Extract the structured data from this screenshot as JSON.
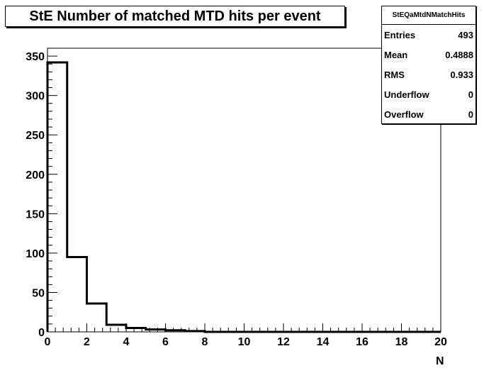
{
  "chart_data": {
    "type": "histogram",
    "title": "StE Number of matched MTD hits per event",
    "xlabel": "N",
    "ylabel": "",
    "xlim": [
      0,
      20
    ],
    "ylim": [
      0,
      360
    ],
    "bin_edges": [
      0,
      1,
      2,
      3,
      4,
      5,
      6,
      7,
      8,
      9,
      10,
      11,
      12,
      13,
      14,
      15,
      16,
      17,
      18,
      19,
      20
    ],
    "values": [
      342,
      95,
      36,
      9,
      5,
      3,
      2,
      1,
      0,
      0,
      0,
      0,
      0,
      0,
      0,
      0,
      0,
      0,
      0,
      0
    ],
    "x_ticks": [
      "0",
      "2",
      "4",
      "6",
      "8",
      "10",
      "12",
      "14",
      "16",
      "18",
      "20"
    ],
    "y_ticks": [
      "0",
      "50",
      "100",
      "150",
      "200",
      "250",
      "300",
      "350"
    ],
    "grid": false,
    "line_color": "#000000"
  },
  "stats": {
    "name": "StEQaMtdNMatchHits",
    "rows": [
      {
        "label": "Entries",
        "value": "493"
      },
      {
        "label": "Mean",
        "value": "0.4888"
      },
      {
        "label": "RMS",
        "value": "0.933"
      },
      {
        "label": "Underflow",
        "value": "0"
      },
      {
        "label": "Overflow",
        "value": "0"
      }
    ]
  }
}
